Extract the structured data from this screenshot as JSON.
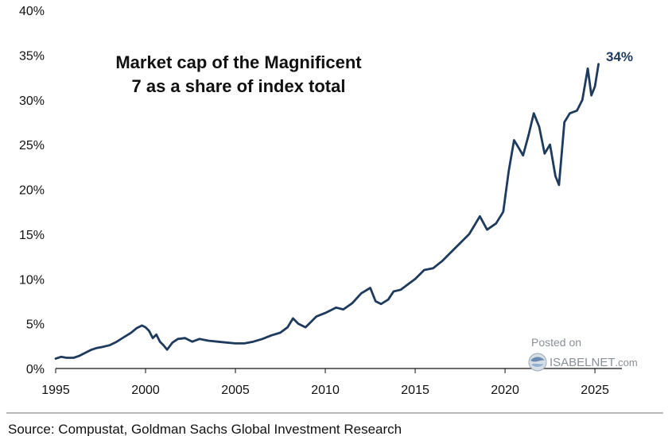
{
  "chart_data": {
    "type": "line",
    "title_lines": [
      "Market cap of the Magnificent",
      "7 as a share of index total"
    ],
    "xlabel": "",
    "ylabel": "",
    "xlim": [
      1995,
      2026.5
    ],
    "ylim": [
      0,
      40
    ],
    "x_ticks": [
      1995,
      2000,
      2005,
      2010,
      2015,
      2020,
      2025
    ],
    "y_ticks": [
      0,
      5,
      10,
      15,
      20,
      25,
      30,
      35,
      40
    ],
    "y_tick_suffix": "%",
    "grid": false,
    "legend": "none",
    "line_color": "#1e3a5c",
    "end_label": "34%",
    "series": [
      {
        "values_x": [
          1995.0,
          1995.3,
          1995.6,
          1996.0,
          1996.3,
          1996.6,
          1997.0,
          1997.3,
          1997.6,
          1998.0,
          1998.4,
          1998.8,
          1999.2,
          1999.5,
          1999.8,
          2000.0,
          2000.2,
          2000.4,
          2000.6,
          2000.8,
          2001.0,
          2001.2,
          2001.5,
          2001.8,
          2002.2,
          2002.6,
          2003.0,
          2003.5,
          2004.0,
          2004.5,
          2005.0,
          2005.5,
          2006.0,
          2006.5,
          2007.0,
          2007.5,
          2007.9,
          2008.2,
          2008.5,
          2008.9,
          2009.2,
          2009.5,
          2010.0,
          2010.3,
          2010.6,
          2011.0,
          2011.5,
          2012.0,
          2012.5,
          2012.8,
          2013.1,
          2013.5,
          2013.8,
          2014.2,
          2014.6,
          2015.0,
          2015.5,
          2016.0,
          2016.5,
          2017.0,
          2017.5,
          2018.0,
          2018.3,
          2018.6,
          2019.0,
          2019.5,
          2019.9,
          2020.2,
          2020.5,
          2020.8,
          2021.0,
          2021.3,
          2021.6,
          2021.9,
          2022.2,
          2022.5,
          2022.8,
          2023.0,
          2023.3,
          2023.6,
          2024.0,
          2024.3,
          2024.6,
          2024.8,
          2025.0,
          2025.2
        ],
        "values": [
          1.1,
          1.3,
          1.2,
          1.2,
          1.4,
          1.7,
          2.1,
          2.3,
          2.4,
          2.6,
          3.0,
          3.5,
          4.0,
          4.5,
          4.8,
          4.6,
          4.2,
          3.4,
          3.8,
          3.0,
          2.6,
          2.1,
          2.9,
          3.3,
          3.4,
          3.0,
          3.3,
          3.1,
          3.0,
          2.9,
          2.8,
          2.8,
          3.0,
          3.3,
          3.7,
          4.0,
          4.6,
          5.6,
          5.0,
          4.6,
          5.2,
          5.8,
          6.2,
          6.5,
          6.8,
          6.6,
          7.3,
          8.4,
          9.0,
          7.5,
          7.2,
          7.7,
          8.6,
          8.8,
          9.4,
          10.0,
          11.0,
          11.2,
          12.0,
          13.0,
          14.0,
          15.0,
          16.0,
          17.0,
          15.5,
          16.2,
          17.5,
          22.0,
          25.5,
          24.5,
          23.8,
          26.0,
          28.5,
          27.0,
          24.0,
          25.0,
          21.5,
          20.5,
          27.5,
          28.5,
          28.8,
          30.0,
          33.5,
          30.5,
          31.5,
          34.0
        ]
      }
    ]
  },
  "watermark": {
    "line1": "Posted on",
    "brand": "ISABELNET",
    "suffix": ".com"
  },
  "source": "Source: Compustat, Goldman Sachs Global Investment Research"
}
